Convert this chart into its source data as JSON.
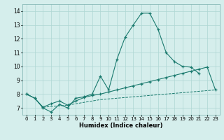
{
  "xlabel": "Humidex (Indice chaleur)",
  "xlim": [
    -0.5,
    23.5
  ],
  "ylim": [
    6.5,
    14.5
  ],
  "yticks": [
    7,
    8,
    9,
    10,
    11,
    12,
    13,
    14
  ],
  "xticks": [
    0,
    1,
    2,
    3,
    4,
    5,
    6,
    7,
    8,
    9,
    10,
    11,
    12,
    13,
    14,
    15,
    16,
    17,
    18,
    19,
    20,
    21,
    22,
    23
  ],
  "bg_color": "#d5eeec",
  "grid_color": "#aed6d3",
  "line_color": "#1a7a6e",
  "line1_x": [
    0,
    1,
    2,
    3,
    4,
    5,
    6,
    7,
    8,
    9,
    10,
    11,
    12,
    13,
    14,
    15,
    16,
    17,
    18,
    19,
    20,
    21
  ],
  "line1_y": [
    8.0,
    7.7,
    7.0,
    6.7,
    7.25,
    7.0,
    7.7,
    7.8,
    8.0,
    9.3,
    8.3,
    10.5,
    12.1,
    13.0,
    13.85,
    13.85,
    12.7,
    11.0,
    10.35,
    10.0,
    9.95,
    9.5
  ],
  "line2_x": [
    0,
    1,
    2,
    3,
    4,
    5,
    6,
    7,
    8,
    9,
    10,
    11,
    12,
    13,
    14,
    15,
    16,
    17,
    18,
    19,
    20,
    21,
    22,
    23
  ],
  "line2_y": [
    8.0,
    7.7,
    7.05,
    7.3,
    7.5,
    7.2,
    7.5,
    7.75,
    7.9,
    8.0,
    8.15,
    8.3,
    8.45,
    8.6,
    8.75,
    8.9,
    9.05,
    9.2,
    9.35,
    9.5,
    9.65,
    9.8,
    9.95,
    8.3
  ],
  "line3_x": [
    0,
    1,
    2,
    3,
    4,
    5,
    6,
    7,
    8,
    9,
    10,
    11,
    12,
    13,
    14,
    15,
    16,
    17,
    18,
    19,
    20,
    21,
    22,
    23
  ],
  "line3_y": [
    8.0,
    7.7,
    7.05,
    7.1,
    7.15,
    7.2,
    7.3,
    7.4,
    7.5,
    7.6,
    7.65,
    7.7,
    7.75,
    7.8,
    7.85,
    7.9,
    7.95,
    8.0,
    8.05,
    8.1,
    8.15,
    8.2,
    8.25,
    8.3
  ]
}
